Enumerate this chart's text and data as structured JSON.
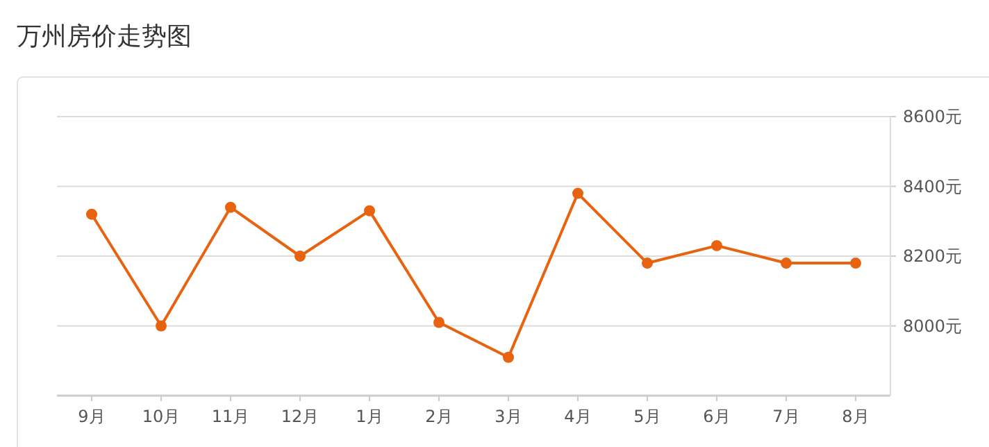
{
  "chart_data": {
    "type": "line",
    "title": "万州房价走势图",
    "categories": [
      "9月",
      "10月",
      "11月",
      "12月",
      "1月",
      "2月",
      "3月",
      "4月",
      "5月",
      "6月",
      "7月",
      "8月"
    ],
    "series": [
      {
        "color": "#e8630f",
        "values": [
          8320,
          8000,
          8340,
          8200,
          8330,
          8010,
          7910,
          8380,
          8180,
          8230,
          8180,
          8180
        ]
      }
    ],
    "ylim": [
      7800,
      8600
    ],
    "yticks": [
      {
        "value": 8000,
        "label": "8000元"
      },
      {
        "value": 8200,
        "label": "8200元"
      },
      {
        "value": 8400,
        "label": "8400元"
      },
      {
        "value": 8600,
        "label": "8600元"
      }
    ],
    "grid": "y",
    "marker": "circle",
    "line_style": "solid"
  }
}
